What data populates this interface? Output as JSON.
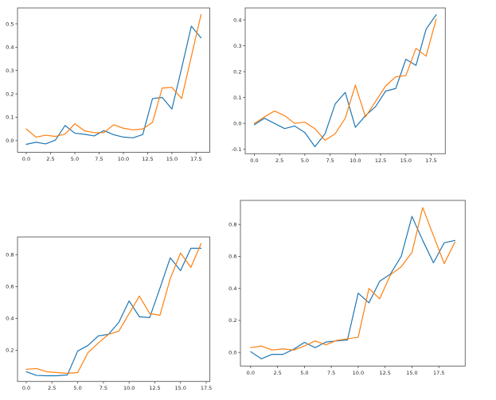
{
  "figure": {
    "background": "#ffffff",
    "description": "2x2 grid of unlabeled matplotlib line subplots, each with a blue and an orange series rising toward the right"
  },
  "colors": {
    "series_blue": "#1f77b4",
    "series_orange": "#ff7f0e",
    "spine": "#5c5c5c",
    "tick": "#444444",
    "tick_text": "#262626"
  },
  "chart_data": [
    {
      "id": "top-left",
      "type": "line",
      "title": "",
      "xlabel": "",
      "ylabel": "",
      "grid": false,
      "legend": null,
      "xlim": [
        -0.9,
        18.9
      ],
      "ylim": [
        -0.05,
        0.568
      ],
      "xtick_values": [
        0,
        2.5,
        5,
        7.5,
        10,
        12.5,
        15,
        17.5
      ],
      "xtick_labels": [
        "0.0",
        "2.5",
        "5.0",
        "7.5",
        "10.0",
        "12.5",
        "15.0",
        "17.5"
      ],
      "ytick_values": [
        0.0,
        0.1,
        0.2,
        0.3,
        0.4,
        0.5
      ],
      "ytick_labels": [
        "0.0",
        "0.1",
        "0.2",
        "0.3",
        "0.4",
        "0.5"
      ],
      "x": [
        0,
        1,
        2,
        3,
        4,
        5,
        6,
        7,
        8,
        9,
        10,
        11,
        12,
        13,
        14,
        15,
        16,
        17,
        18
      ],
      "series": [
        {
          "name": "blue",
          "color": "#1f77b4",
          "values": [
            -0.016,
            -0.007,
            -0.014,
            0.002,
            0.065,
            0.032,
            0.027,
            0.02,
            0.043,
            0.025,
            0.015,
            0.012,
            0.026,
            0.18,
            0.185,
            0.135,
            0.31,
            0.49,
            0.44
          ]
        },
        {
          "name": "orange",
          "color": "#ff7f0e",
          "values": [
            0.05,
            0.015,
            0.023,
            0.018,
            0.028,
            0.072,
            0.042,
            0.034,
            0.034,
            0.068,
            0.053,
            0.046,
            0.05,
            0.078,
            0.225,
            0.228,
            0.18,
            0.36,
            0.54
          ]
        }
      ]
    },
    {
      "id": "top-right",
      "type": "line",
      "title": "",
      "xlabel": "",
      "ylabel": "",
      "grid": false,
      "legend": null,
      "xlim": [
        -0.9,
        18.9
      ],
      "ylim": [
        -0.117,
        0.446
      ],
      "xtick_values": [
        0,
        2.5,
        5,
        7.5,
        10,
        12.5,
        15,
        17.5
      ],
      "xtick_labels": [
        "0.0",
        "2.5",
        "5.0",
        "7.5",
        "10.0",
        "12.5",
        "15.0",
        "17.5"
      ],
      "ytick_values": [
        -0.1,
        0.0,
        0.1,
        0.2,
        0.3,
        0.4
      ],
      "ytick_labels": [
        "-0.1",
        "0.0",
        "0.1",
        "0.2",
        "0.3",
        "0.4"
      ],
      "x": [
        0,
        1,
        2,
        3,
        4,
        5,
        6,
        7,
        8,
        9,
        10,
        11,
        12,
        13,
        14,
        15,
        16,
        17,
        18
      ],
      "series": [
        {
          "name": "blue",
          "color": "#1f77b4",
          "values": [
            -0.005,
            0.02,
            0.0,
            -0.02,
            -0.01,
            -0.035,
            -0.09,
            -0.04,
            0.075,
            0.12,
            -0.015,
            0.03,
            0.065,
            0.125,
            0.135,
            0.248,
            0.224,
            0.364,
            0.42
          ]
        },
        {
          "name": "orange",
          "color": "#ff7f0e",
          "values": [
            0.0,
            0.025,
            0.048,
            0.03,
            0.0,
            0.005,
            -0.02,
            -0.065,
            -0.04,
            0.02,
            0.148,
            0.025,
            0.085,
            0.145,
            0.18,
            0.185,
            0.29,
            0.26,
            0.403
          ]
        }
      ]
    },
    {
      "id": "bottom-left",
      "type": "line",
      "title": "",
      "xlabel": "",
      "ylabel": "",
      "grid": false,
      "legend": null,
      "xlim": [
        -0.85,
        17.85
      ],
      "ylim": [
        0.004,
        0.911
      ],
      "xtick_values": [
        0,
        2.5,
        5,
        7.5,
        10,
        12.5,
        15,
        17.5
      ],
      "xtick_labels": [
        "0.0",
        "2.5",
        "5.0",
        "7.5",
        "10.0",
        "12.5",
        "15.0",
        "17.5"
      ],
      "ytick_values": [
        0.2,
        0.4,
        0.6,
        0.8
      ],
      "ytick_labels": [
        "0.2",
        "0.4",
        "0.6",
        "0.8"
      ],
      "x": [
        0,
        1,
        2,
        3,
        4,
        5,
        6,
        7,
        8,
        9,
        10,
        11,
        12,
        13,
        14,
        15,
        16,
        17
      ],
      "series": [
        {
          "name": "blue",
          "color": "#1f77b4",
          "values": [
            0.065,
            0.042,
            0.04,
            0.04,
            0.045,
            0.195,
            0.23,
            0.29,
            0.3,
            0.375,
            0.51,
            0.41,
            0.405,
            0.59,
            0.78,
            0.7,
            0.84,
            0.84
          ]
        },
        {
          "name": "orange",
          "color": "#ff7f0e",
          "values": [
            0.08,
            0.085,
            0.065,
            0.06,
            0.055,
            0.06,
            0.185,
            0.245,
            0.3,
            0.32,
            0.43,
            0.54,
            0.43,
            0.42,
            0.65,
            0.81,
            0.72,
            0.87
          ]
        }
      ]
    },
    {
      "id": "bottom-right",
      "type": "line",
      "title": "",
      "xlabel": "",
      "ylabel": "",
      "grid": false,
      "legend": null,
      "xlim": [
        -0.95,
        19.95
      ],
      "ylim": [
        -0.085,
        0.95
      ],
      "xtick_values": [
        0,
        2.5,
        5,
        7.5,
        10,
        12.5,
        15,
        17.5
      ],
      "xtick_labels": [
        "0.0",
        "2.5",
        "5.0",
        "7.5",
        "10.0",
        "12.5",
        "15.0",
        "17.5"
      ],
      "ytick_values": [
        0.0,
        0.2,
        0.4,
        0.6,
        0.8
      ],
      "ytick_labels": [
        "0.0",
        "0.2",
        "0.4",
        "0.6",
        "0.8"
      ],
      "x": [
        0,
        1,
        2,
        3,
        4,
        5,
        6,
        7,
        8,
        9,
        10,
        11,
        12,
        13,
        14,
        15,
        16,
        17,
        18,
        19
      ],
      "series": [
        {
          "name": "blue",
          "color": "#1f77b4",
          "values": [
            0.005,
            -0.04,
            -0.012,
            -0.012,
            0.02,
            0.063,
            0.03,
            0.065,
            0.072,
            0.078,
            0.37,
            0.31,
            0.445,
            0.49,
            0.6,
            0.85,
            0.7,
            0.56,
            0.685,
            0.7
          ]
        },
        {
          "name": "orange",
          "color": "#ff7f0e",
          "values": [
            0.03,
            0.04,
            0.015,
            0.022,
            0.015,
            0.04,
            0.072,
            0.048,
            0.075,
            0.085,
            0.095,
            0.4,
            0.335,
            0.485,
            0.535,
            0.625,
            0.905,
            0.73,
            0.555,
            0.69
          ]
        }
      ]
    }
  ]
}
